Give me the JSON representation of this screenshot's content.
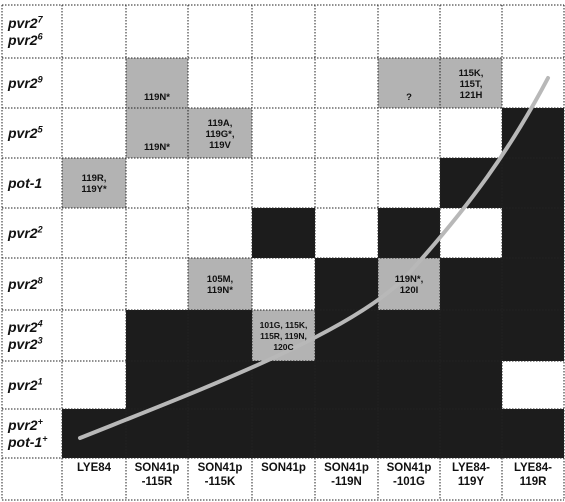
{
  "row_labels": [
    {
      "lines": [
        {
          "base": "pvr2",
          "sup": "7"
        },
        {
          "base": "pvr2",
          "sup": "6"
        }
      ]
    },
    {
      "lines": [
        {
          "base": "pvr2",
          "sup": "9"
        }
      ]
    },
    {
      "lines": [
        {
          "base": "pvr2",
          "sup": "5"
        }
      ]
    },
    {
      "lines": [
        {
          "base": "pot-1",
          "sup": ""
        }
      ]
    },
    {
      "lines": [
        {
          "base": "pvr2",
          "sup": "2"
        }
      ]
    },
    {
      "lines": [
        {
          "base": "pvr2",
          "sup": "8"
        }
      ]
    },
    {
      "lines": [
        {
          "base": "pvr2",
          "sup": "4"
        },
        {
          "base": "pvr2",
          "sup": "3"
        }
      ]
    },
    {
      "lines": [
        {
          "base": "pvr2",
          "sup": "1"
        }
      ]
    },
    {
      "lines": [
        {
          "base": "pvr2",
          "sup": "+"
        },
        {
          "base": "pot-1",
          "sup": "+"
        }
      ]
    }
  ],
  "column_labels": [
    "LYE84",
    "SON41p\n-115R",
    "SON41p\n-115K",
    "SON41p",
    "SON41p\n-119N",
    "SON41p\n-101G",
    "LYE84-\n119Y",
    "LYE84-\n119R"
  ],
  "cell_states": [
    [
      "w",
      "w",
      "w",
      "w",
      "w",
      "w",
      "w",
      "w"
    ],
    [
      "w",
      "g",
      "w",
      "w",
      "w",
      "g",
      "g",
      "w"
    ],
    [
      "w",
      "g",
      "g",
      "w",
      "w",
      "w",
      "w",
      "b"
    ],
    [
      "g",
      "w",
      "w",
      "w",
      "w",
      "w",
      "b",
      "b"
    ],
    [
      "w",
      "w",
      "w",
      "b",
      "w",
      "b",
      "w",
      "b"
    ],
    [
      "w",
      "w",
      "g",
      "w",
      "b",
      "g",
      "b",
      "b"
    ],
    [
      "w",
      "b",
      "b",
      "g",
      "b",
      "b",
      "b",
      "b"
    ],
    [
      "w",
      "b",
      "b",
      "b",
      "b",
      "b",
      "b",
      "w"
    ],
    [
      "b",
      "b",
      "b",
      "b",
      "b",
      "b",
      "b",
      "b"
    ]
  ],
  "cell_texts": [
    {
      "row": 1,
      "col": 1,
      "text": "119N*"
    },
    {
      "row": 1,
      "col": 5,
      "text": "?"
    },
    {
      "row": 1,
      "col": 6,
      "text": "115K,\n115T,\n121H"
    },
    {
      "row": 2,
      "col": 1,
      "text": "119N*"
    },
    {
      "row": 2,
      "col": 2,
      "text": "119A,\n119G*,\n119V"
    },
    {
      "row": 3,
      "col": 0,
      "text": "119R,\n119Y*"
    },
    {
      "row": 5,
      "col": 2,
      "text": "105M,\n119N*"
    },
    {
      "row": 5,
      "col": 5,
      "text": "119N*,\n120I"
    },
    {
      "row": 6,
      "col": 3,
      "text": "101G, 115K,\n115R, 119N,\n120C"
    }
  ],
  "colors": {
    "black": "#1c1c1c",
    "gray": "#b3b3b3",
    "white": "#ffffff",
    "curve": "#b8b8b8",
    "grid": "#222222"
  }
}
